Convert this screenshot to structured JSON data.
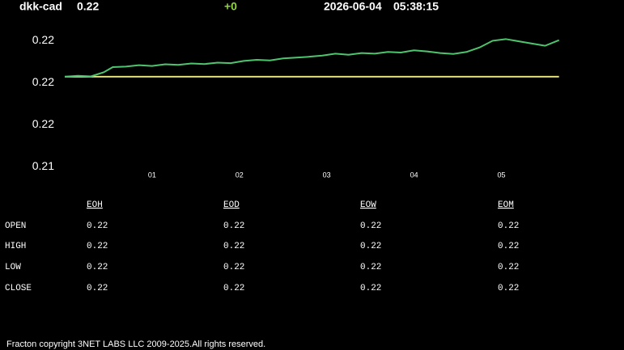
{
  "header": {
    "symbol": "dkk-cad",
    "price": "0.22",
    "change": "+0",
    "date": "2026-06-04",
    "time": "05:38:15"
  },
  "chart_data": {
    "type": "line",
    "x": [
      0,
      0.15,
      0.3,
      0.45,
      0.55,
      0.7,
      0.85,
      1.0,
      1.15,
      1.3,
      1.45,
      1.6,
      1.75,
      1.9,
      2.05,
      2.2,
      2.35,
      2.5,
      2.65,
      2.8,
      2.95,
      3.1,
      3.25,
      3.4,
      3.55,
      3.7,
      3.85,
      4.0,
      4.15,
      4.3,
      4.45,
      4.6,
      4.75,
      4.9,
      5.05,
      5.2,
      5.35,
      5.5,
      5.66
    ],
    "series": [
      {
        "color": "#4ec46e",
        "values": [
          0.21722,
          0.21725,
          0.21723,
          0.21738,
          0.21756,
          0.21758,
          0.21763,
          0.2176,
          0.21766,
          0.21764,
          0.21769,
          0.21767,
          0.21772,
          0.2177,
          0.21778,
          0.21782,
          0.2178,
          0.21787,
          0.2179,
          0.21793,
          0.21797,
          0.21804,
          0.218,
          0.21806,
          0.21804,
          0.2181,
          0.21808,
          0.21816,
          0.21812,
          0.21806,
          0.21803,
          0.2181,
          0.21826,
          0.2185,
          0.21856,
          0.21848,
          0.2184,
          0.21832,
          0.21852
        ]
      },
      {
        "color": "#e3e07a",
        "values": [
          0.21722,
          0.21722,
          0.21722,
          0.21722,
          0.21722,
          0.21722,
          0.21722,
          0.21722,
          0.21722,
          0.21722,
          0.21722,
          0.21722,
          0.21722,
          0.21722,
          0.21722,
          0.21722,
          0.21722,
          0.21722,
          0.21722,
          0.21722,
          0.21722,
          0.21722,
          0.21722,
          0.21722,
          0.21722,
          0.21722,
          0.21722,
          0.21722,
          0.21722,
          0.21722,
          0.21722,
          0.21722,
          0.21722,
          0.21722,
          0.21722,
          0.21722,
          0.21722,
          0.21722,
          0.21722
        ]
      }
    ],
    "xlim": [
      0,
      5.7
    ],
    "xticks": [
      {
        "value": 1,
        "label": "01"
      },
      {
        "value": 2,
        "label": "02"
      },
      {
        "value": 3,
        "label": "03"
      },
      {
        "value": 4,
        "label": "04"
      },
      {
        "value": 5,
        "label": "05"
      }
    ],
    "ylim": [
      0.2139,
      0.2188
    ],
    "yticks": [
      {
        "value": 0.2185,
        "label": "0.22"
      },
      {
        "value": 0.217,
        "label": "0.22"
      },
      {
        "value": 0.2155,
        "label": "0.22"
      },
      {
        "value": 0.214,
        "label": "0.21"
      }
    ]
  },
  "table": {
    "columns": [
      "EOH",
      "EOD",
      "EOW",
      "EOM"
    ],
    "rows": [
      {
        "label": "OPEN",
        "values": [
          "0.22",
          "0.22",
          "0.22",
          "0.22"
        ]
      },
      {
        "label": "HIGH",
        "values": [
          "0.22",
          "0.22",
          "0.22",
          "0.22"
        ]
      },
      {
        "label": "LOW",
        "values": [
          "0.22",
          "0.22",
          "0.22",
          "0.22"
        ]
      },
      {
        "label": "CLOSE",
        "values": [
          "0.22",
          "0.22",
          "0.22",
          "0.22"
        ]
      }
    ]
  },
  "footer": "Fracton copyright 3NET LABS LLC 2009-2025.All rights reserved."
}
